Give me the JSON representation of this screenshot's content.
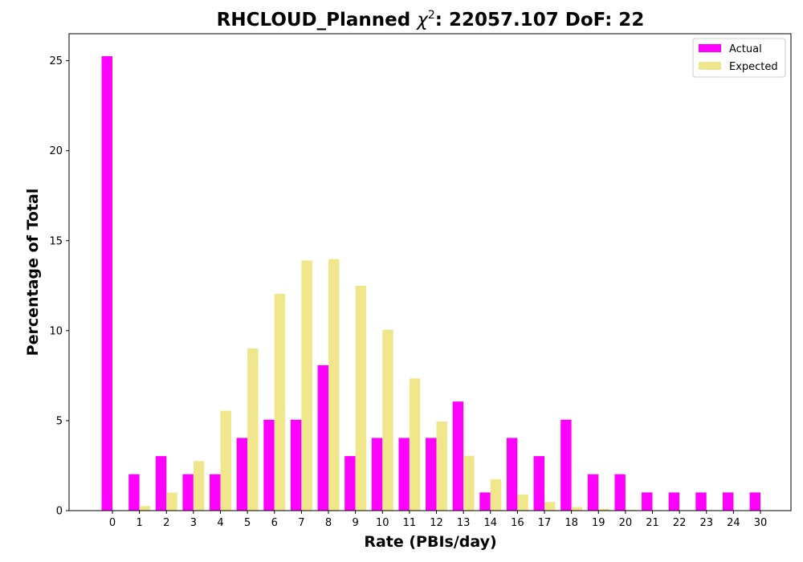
{
  "chart_data": {
    "type": "bar",
    "title_prefix": "RHCLOUD_Planned ",
    "title_chi": "χ",
    "title_sup": "2",
    "title_suffix": ": 22057.107 DoF: 22",
    "xlabel": "Rate (PBIs/day)",
    "ylabel": "Percentage of Total",
    "ylim": [
      0,
      26.5
    ],
    "yticks": [
      0,
      5,
      10,
      15,
      20,
      25
    ],
    "legend_position": "top-right",
    "categories": [
      "0",
      "1",
      "2",
      "3",
      "4",
      "5",
      "6",
      "7",
      "8",
      "9",
      "10",
      "11",
      "12",
      "13",
      "14",
      "16",
      "17",
      "18",
      "19",
      "20",
      "21",
      "22",
      "23",
      "24",
      "30"
    ],
    "series": [
      {
        "name": "Actual",
        "color": "#ff00ff",
        "values": [
          25.25,
          2.02,
          3.03,
          2.02,
          2.02,
          4.04,
          5.05,
          5.05,
          8.08,
          3.03,
          4.04,
          4.04,
          4.04,
          6.06,
          1.01,
          4.04,
          3.03,
          5.05,
          2.02,
          2.02,
          1.01,
          1.01,
          1.01,
          1.01,
          1.01
        ]
      },
      {
        "name": "Expected",
        "color": "#f0e68c",
        "values": [
          0.0,
          0.25,
          1.0,
          2.75,
          5.55,
          9.02,
          12.05,
          13.9,
          13.98,
          12.5,
          10.05,
          7.35,
          4.95,
          3.05,
          1.75,
          0.9,
          0.48,
          0.2,
          0.1,
          0.05,
          0.02,
          0.01,
          0.0,
          0.0,
          0.0
        ]
      }
    ]
  }
}
